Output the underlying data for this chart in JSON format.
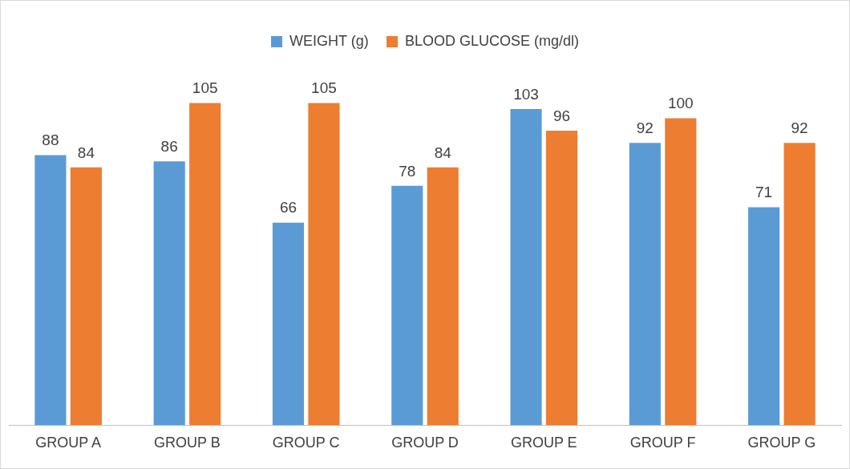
{
  "chart_data": {
    "type": "bar",
    "categories": [
      "GROUP A",
      "GROUP B",
      "GROUP C",
      "GROUP D",
      "GROUP E",
      "GROUP F",
      "GROUP G"
    ],
    "series": [
      {
        "name": "WEIGHT (g)",
        "color": "#5b9bd5",
        "values": [
          88,
          86,
          66,
          78,
          103,
          92,
          71
        ]
      },
      {
        "name": "BLOOD GLUCOSE (mg/dl)",
        "color": "#ed7d31",
        "values": [
          84,
          105,
          105,
          84,
          96,
          100,
          92
        ]
      }
    ],
    "data_labels": true,
    "legend": "top",
    "grid": false
  }
}
